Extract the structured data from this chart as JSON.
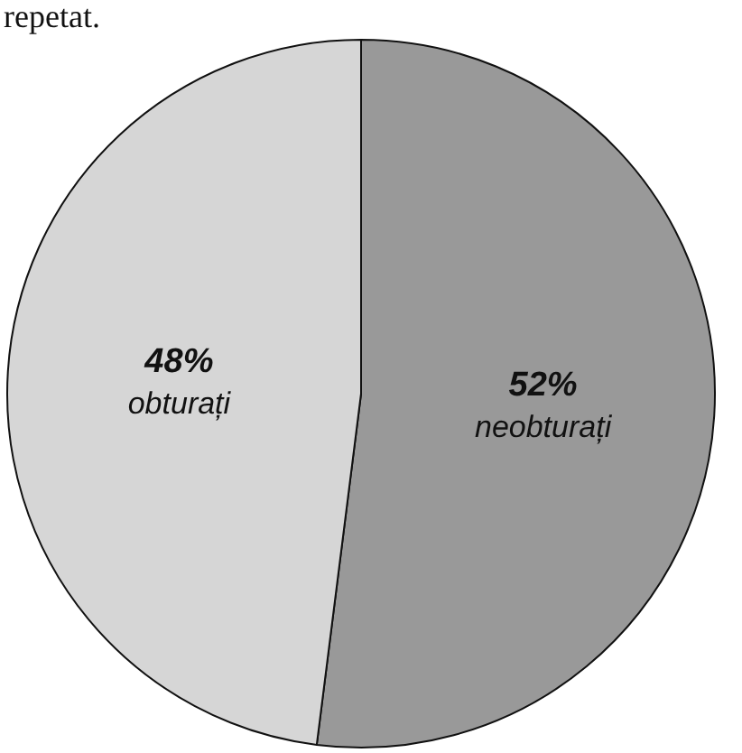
{
  "chart_data": {
    "type": "pie",
    "categories": [
      "neobturați",
      "obturați"
    ],
    "values": [
      52,
      48
    ],
    "value_labels": [
      "52%",
      "48%"
    ],
    "colors": [
      "#999999",
      "#d6d6d6"
    ],
    "annotations": [
      "repetat."
    ],
    "legend": false
  }
}
